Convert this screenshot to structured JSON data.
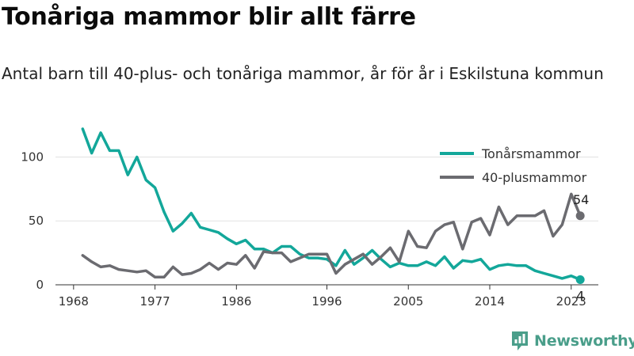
{
  "title": "Tonåriga mammor blir allt färre",
  "subtitle": "Antal barn till 40-plus- och tonåriga mammor, år för år i Eskilstuna kommun",
  "brand": {
    "name": "Newsworthy",
    "color": "#4a9e8a",
    "icon": "bar-chart-logo-icon"
  },
  "chart_data": {
    "type": "line",
    "x_range": [
      1966,
      2026
    ],
    "ylim": [
      0,
      130
    ],
    "xticks": [
      1968,
      1977,
      1986,
      1996,
      2005,
      2014,
      2023
    ],
    "yticks": [
      0,
      50,
      100
    ],
    "legend_position": "top-right",
    "grid": "horizontal",
    "x": [
      1969,
      1970,
      1971,
      1972,
      1973,
      1974,
      1975,
      1976,
      1977,
      1978,
      1979,
      1980,
      1981,
      1982,
      1983,
      1984,
      1985,
      1986,
      1987,
      1988,
      1989,
      1990,
      1991,
      1992,
      1993,
      1994,
      1995,
      1996,
      1997,
      1998,
      1999,
      2000,
      2001,
      2002,
      2003,
      2004,
      2005,
      2006,
      2007,
      2008,
      2009,
      2010,
      2011,
      2012,
      2013,
      2014,
      2015,
      2016,
      2017,
      2018,
      2019,
      2020,
      2021,
      2022,
      2023,
      2024
    ],
    "series": [
      {
        "name": "Tonårsmammor",
        "color": "#13a79a",
        "end_label": "4",
        "values": [
          122,
          103,
          119,
          105,
          105,
          86,
          100,
          82,
          76,
          57,
          42,
          48,
          56,
          45,
          43,
          41,
          36,
          32,
          35,
          28,
          28,
          25,
          30,
          30,
          24,
          21,
          21,
          20,
          15,
          27,
          16,
          21,
          27,
          20,
          14,
          17,
          15,
          15,
          18,
          15,
          22,
          13,
          19,
          18,
          20,
          12,
          15,
          16,
          15,
          15,
          11,
          9,
          7,
          5,
          7,
          4
        ]
      },
      {
        "name": "40-plusmammor",
        "color": "#6b6b70",
        "end_label": "54",
        "values": [
          23,
          18,
          14,
          15,
          12,
          11,
          10,
          11,
          6,
          6,
          14,
          8,
          9,
          12,
          17,
          12,
          17,
          16,
          23,
          13,
          26,
          25,
          25,
          18,
          21,
          24,
          24,
          24,
          9,
          16,
          20,
          24,
          16,
          22,
          29,
          18,
          42,
          30,
          29,
          42,
          47,
          49,
          28,
          49,
          52,
          39,
          61,
          47,
          54,
          54,
          54,
          58,
          38,
          47,
          71,
          54
        ]
      }
    ]
  }
}
